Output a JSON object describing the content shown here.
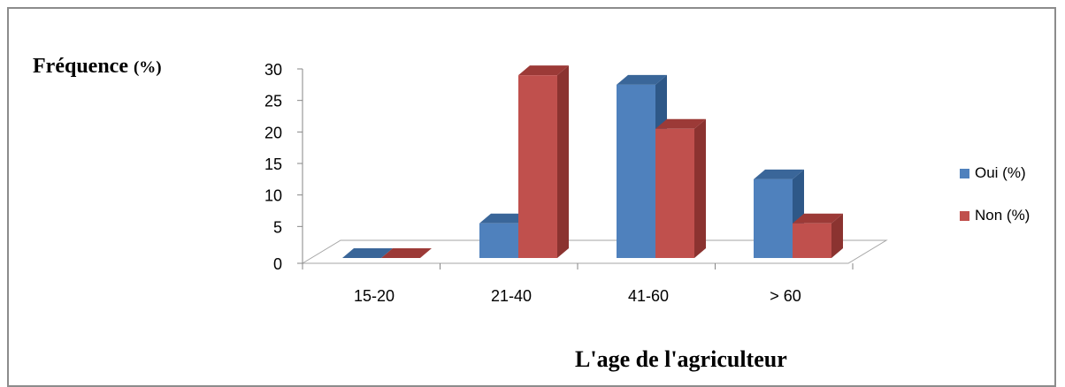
{
  "chart_data": {
    "type": "bar",
    "title": "",
    "ylabel_main": "Fréquence",
    "ylabel_unit": "(%)",
    "xlabel": "L'age de l'agriculteur",
    "categories": [
      "15-20",
      "21-40",
      "41-60",
      "> 60"
    ],
    "series": [
      {
        "name": "Oui (%)",
        "values": [
          0,
          5.5,
          27.5,
          12.5
        ],
        "color": "#4f81bd",
        "top_color": "#3a6699",
        "side_color": "#2e5888"
      },
      {
        "name": "Non (%)",
        "values": [
          0,
          29,
          20.5,
          5.5
        ],
        "color": "#c0504d",
        "top_color": "#9c3a37",
        "side_color": "#8b3330"
      }
    ],
    "ylim": [
      0,
      30
    ],
    "yticks": [
      0,
      5,
      10,
      15,
      20,
      25,
      30
    ],
    "legend_position": "right",
    "grid": false,
    "style": "3d-clustered-column"
  }
}
